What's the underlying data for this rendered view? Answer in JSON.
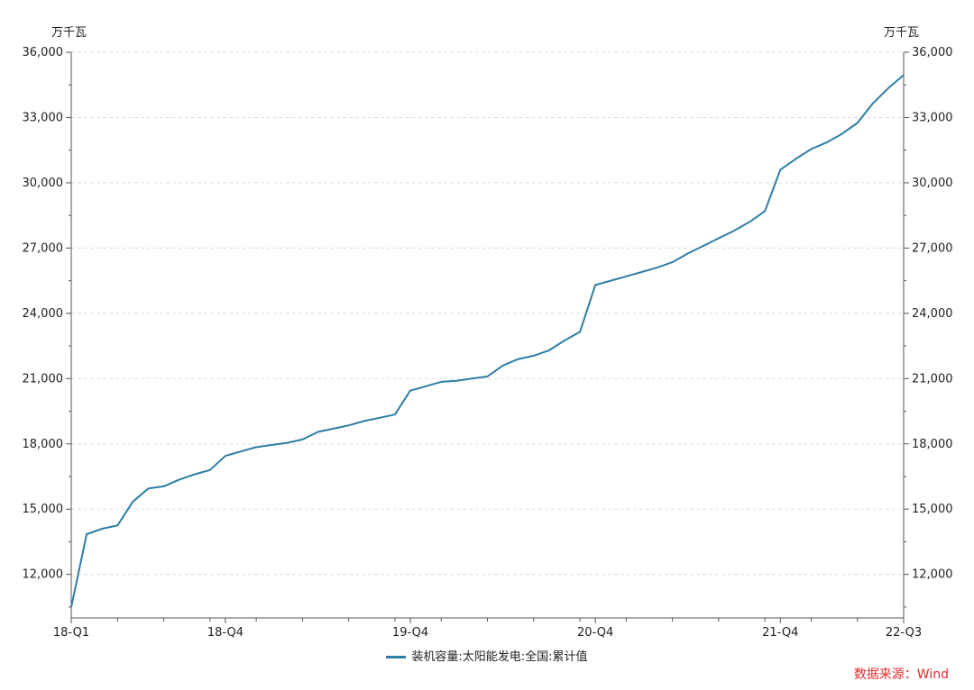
{
  "chart_data": {
    "type": "line",
    "y_unit_left": "万千瓦",
    "y_unit_right": "万千瓦",
    "ylim": [
      10000,
      36000
    ],
    "yticks": [
      12000,
      15000,
      18000,
      21000,
      24000,
      27000,
      30000,
      33000,
      36000
    ],
    "ytick_labels": [
      "12,000",
      "15,000",
      "18,000",
      "21,000",
      "24,000",
      "27,000",
      "30,000",
      "33,000",
      "36,000"
    ],
    "grid": true,
    "x_labels": [
      "18-Q1",
      "18-Q4",
      "19-Q4",
      "20-Q4",
      "21-Q4",
      "22-Q3"
    ],
    "x_label_positions": [
      0,
      10,
      22,
      34,
      46,
      54
    ],
    "x_count": 55,
    "series": [
      {
        "name": "装机容量:太阳能发电:全国:累计值",
        "color": "#2e7ea6",
        "values": [
          10500,
          13850,
          14100,
          14250,
          15350,
          15950,
          16050,
          16350,
          16600,
          16800,
          17450,
          17650,
          17850,
          17950,
          18050,
          18200,
          18550,
          18700,
          18850,
          19050,
          19200,
          19350,
          20450,
          20650,
          20850,
          20900,
          21000,
          21100,
          21600,
          21900,
          22050,
          22300,
          22750,
          23150,
          25300,
          25500,
          25700,
          25900,
          26100,
          26350,
          26750,
          27100,
          27450,
          27800,
          28200,
          28700,
          30600,
          31100,
          31550,
          31850,
          32250,
          32750,
          33650,
          34350,
          34950
        ]
      }
    ]
  },
  "legend": {
    "label": "装机容量:太阳能发电:全国:累计值"
  },
  "source": "数据来源：Wind"
}
